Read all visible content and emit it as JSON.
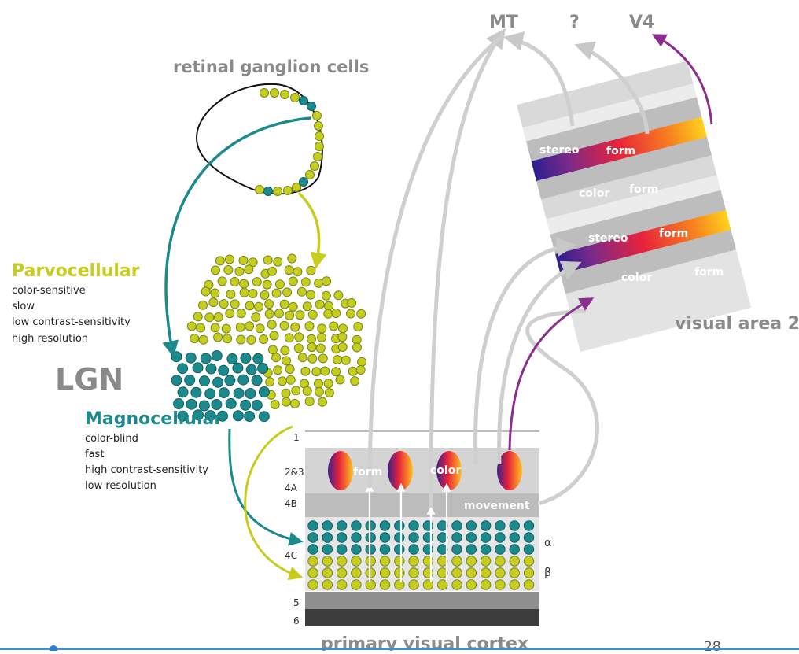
{
  "labels": {
    "retinal": "retinal ganglion cells",
    "lgn": "LGN",
    "parvo_title": "Parvocellular",
    "parvo_props": [
      "color-sensitive",
      "slow",
      "low contrast-sensitivity",
      "high resolution"
    ],
    "magno_title": "Magnocellular",
    "magno_props": [
      "color-blind",
      "fast",
      "high contrast-sensitivity",
      "low resolution"
    ],
    "mt": "MT",
    "unknown": "?",
    "v4": "V4",
    "visual_area_2": "visual area 2",
    "primary_visual_cortex": "primary visual cortex",
    "page_number": "28"
  },
  "v1": {
    "layers": [
      "1",
      "2&3",
      "4A",
      "4B",
      "4C",
      "5",
      "6"
    ],
    "form": "form",
    "color": "color",
    "movement": "movement",
    "alpha": "α",
    "beta": "β"
  },
  "v2": {
    "stereo_1": "stereo",
    "form_1": "form",
    "color_1": "color",
    "form_2": "form",
    "stereo_2": "stereo",
    "form_3": "form",
    "color_2": "color",
    "form_4": "form"
  },
  "colors": {
    "parvo": "#c8cc1e",
    "magno": "#1c8a8c",
    "pathway_purple": "#8b2e8f",
    "arrow_gray": "#cfcfcf"
  }
}
